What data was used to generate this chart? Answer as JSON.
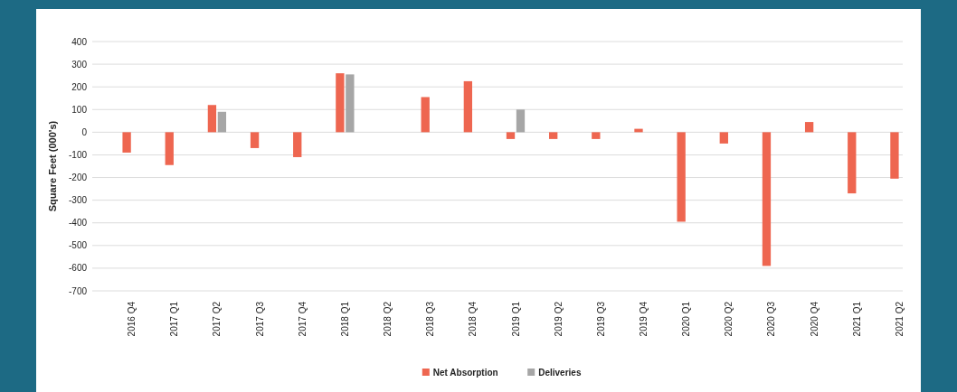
{
  "chart_data": {
    "type": "bar",
    "ylabel": "Square Feet (000's)",
    "categories": [
      "2016 Q4",
      "2017 Q1",
      "2017 Q2",
      "2017 Q3",
      "2017 Q4",
      "2018 Q1",
      "2018 Q2",
      "2018 Q3",
      "2018 Q4",
      "2019 Q1",
      "2019 Q2",
      "2019 Q3",
      "2019 Q4",
      "2020 Q1",
      "2020 Q2",
      "2020 Q3",
      "2020 Q4",
      "2021 Q1",
      "2021 Q2"
    ],
    "series": [
      {
        "name": "Net Absorption",
        "color": "#ee6650",
        "values": [
          -90,
          -145,
          120,
          -70,
          -110,
          260,
          null,
          155,
          225,
          -30,
          -30,
          -30,
          15,
          -395,
          -50,
          -590,
          45,
          -270,
          -205
        ]
      },
      {
        "name": "Deliveries",
        "color": "#a6a6a6",
        "values": [
          null,
          null,
          90,
          null,
          null,
          255,
          null,
          null,
          null,
          100,
          null,
          null,
          null,
          null,
          null,
          null,
          null,
          null,
          null
        ]
      }
    ],
    "ylim": [
      -700,
      400
    ],
    "yticks": [
      -700,
      -600,
      -500,
      -400,
      -300,
      -200,
      -100,
      0,
      100,
      200,
      300,
      400
    ],
    "grid": "y",
    "legend": "bottom"
  }
}
